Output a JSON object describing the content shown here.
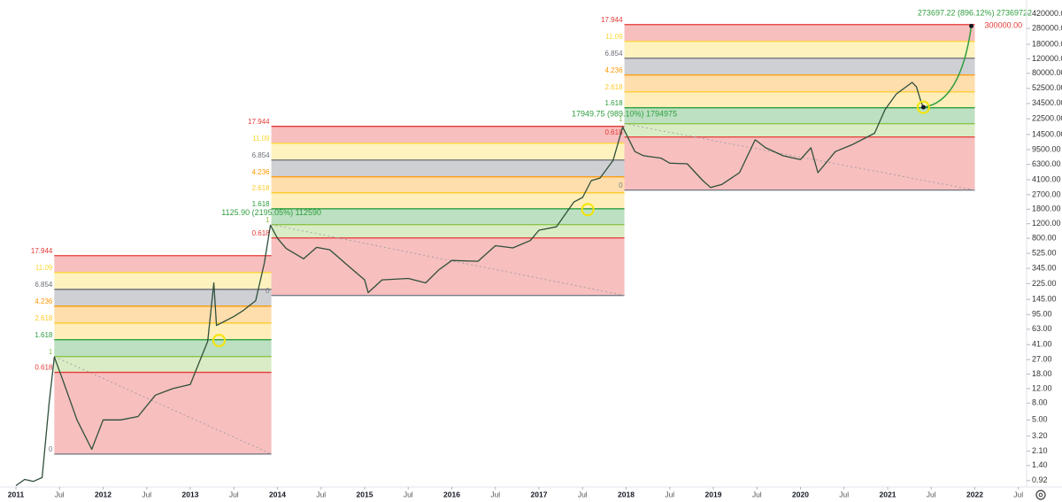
{
  "chart_data": {
    "type": "line",
    "log_scale": true,
    "color": "#2f4f3a",
    "xlim": [
      2010.817,
      2022.594
    ],
    "ylim": [
      0.77,
      620000
    ],
    "grid": false,
    "x": [
      2011.0,
      2011.1,
      2011.2,
      2011.3,
      2011.38,
      2011.44,
      2011.55,
      2011.7,
      2011.87,
      2012.0,
      2012.2,
      2012.4,
      2012.6,
      2012.8,
      2013.0,
      2013.2,
      2013.27,
      2013.3,
      2013.5,
      2013.6,
      2013.75,
      2013.85,
      2013.92,
      2014.0,
      2014.1,
      2014.3,
      2014.45,
      2014.6,
      2014.8,
      2015.0,
      2015.04,
      2015.2,
      2015.5,
      2015.7,
      2015.85,
      2016.0,
      2016.3,
      2016.5,
      2016.7,
      2016.9,
      2017.0,
      2017.2,
      2017.4,
      2017.5,
      2017.6,
      2017.7,
      2017.85,
      2017.96,
      2018.1,
      2018.2,
      2018.4,
      2018.5,
      2018.7,
      2018.88,
      2018.97,
      2019.1,
      2019.3,
      2019.48,
      2019.6,
      2019.8,
      2020.0,
      2020.12,
      2020.2,
      2020.4,
      2020.6,
      2020.85,
      2020.97,
      2021.1,
      2021.28,
      2021.33,
      2021.38,
      2021.41
    ],
    "values": [
      0.8,
      0.95,
      0.9,
      1.0,
      8,
      29,
      14,
      5,
      2.2,
      5,
      5,
      5.5,
      10,
      12,
      13.5,
      45,
      230,
      70,
      90,
      105,
      140,
      400,
      1150,
      800,
      600,
      450,
      620,
      580,
      380,
      250,
      175,
      250,
      260,
      230,
      330,
      430,
      420,
      650,
      610,
      750,
      1000,
      1100,
      2200,
      2500,
      4000,
      4300,
      7000,
      17900,
      9000,
      8000,
      7500,
      6500,
      6400,
      4000,
      3300,
      3600,
      5000,
      12500,
      10000,
      8000,
      7200,
      10000,
      5000,
      9000,
      11000,
      15000,
      29000,
      45000,
      62000,
      55000,
      37000,
      31000
    ],
    "yticks": [
      {
        "value": 420000,
        "label": "420000.00"
      },
      {
        "value": 280000,
        "label": "280000.00"
      },
      {
        "value": 180000,
        "label": "180000.00"
      },
      {
        "value": 120000,
        "label": "120000.00"
      },
      {
        "value": 80000,
        "label": "80000.00"
      },
      {
        "value": 52500,
        "label": "52500.00"
      },
      {
        "value": 34500,
        "label": "34500.00"
      },
      {
        "value": 22500,
        "label": "22500.00"
      },
      {
        "value": 14500,
        "label": "14500.00"
      },
      {
        "value": 9500,
        "label": "9500.00"
      },
      {
        "value": 6300,
        "label": "6300.00"
      },
      {
        "value": 4100,
        "label": "4100.00"
      },
      {
        "value": 2700,
        "label": "2700.00"
      },
      {
        "value": 1800,
        "label": "1800.00"
      },
      {
        "value": 1200,
        "label": "1200.00"
      },
      {
        "value": 800,
        "label": "800.00"
      },
      {
        "value": 525,
        "label": "525.00"
      },
      {
        "value": 345,
        "label": "345.00"
      },
      {
        "value": 225,
        "label": "225.00"
      },
      {
        "value": 145,
        "label": "145.00"
      },
      {
        "value": 95,
        "label": "95.00"
      },
      {
        "value": 63,
        "label": "63.00"
      },
      {
        "value": 41,
        "label": "41.00"
      },
      {
        "value": 27,
        "label": "27.00"
      },
      {
        "value": 18,
        "label": "18.00"
      },
      {
        "value": 12,
        "label": "12.00"
      },
      {
        "value": 8,
        "label": "8.00"
      },
      {
        "value": 5,
        "label": "5.00"
      },
      {
        "value": 3.2,
        "label": "3.20"
      },
      {
        "value": 2.1,
        "label": "2.10"
      },
      {
        "value": 1.4,
        "label": "1.40"
      },
      {
        "value": 0.92,
        "label": "0.92"
      }
    ],
    "xticks": [
      2011,
      {
        "value": 2011.5,
        "label": "Jul"
      },
      2012,
      {
        "value": 2012.5,
        "label": "Jul"
      },
      2013,
      {
        "value": 2013.5,
        "label": "Jul"
      },
      2014,
      {
        "value": 2014.5,
        "label": "Jul"
      },
      2015,
      {
        "value": 2015.5,
        "label": "Jul"
      },
      2016,
      {
        "value": 2016.5,
        "label": "Jul"
      },
      2017,
      {
        "value": 2017.5,
        "label": "Jul"
      },
      2018,
      {
        "value": 2018.5,
        "label": "Jul"
      },
      2019,
      {
        "value": 2019.5,
        "label": "Jul"
      },
      2020,
      {
        "value": 2020.5,
        "label": "Jul"
      },
      2021,
      {
        "value": 2021.5,
        "label": "Jul"
      },
      2022,
      {
        "value": 2022.5,
        "label": "Jul"
      }
    ],
    "fib_levels": [
      {
        "label": "0",
        "color": "#787b86"
      },
      {
        "label": "0.618",
        "color": "#e53935"
      },
      {
        "label": "1",
        "color": "#8bc34a"
      },
      {
        "label": "1.618",
        "color": "#2e9e3e"
      },
      {
        "label": "2.618",
        "color": "#ffca28"
      },
      {
        "label": "4.236",
        "color": "#ff9800"
      },
      {
        "label": "6.854",
        "color": "#6b6e78"
      },
      {
        "label": "11.09",
        "color": "#fdd835"
      },
      {
        "label": "17.944",
        "color": "#e53935"
      }
    ],
    "boxes": [
      {
        "start": 2011.44,
        "end": 2013.93,
        "prices": [
          1.93,
          18.9,
          29.4,
          47,
          75,
          120,
          192,
          307,
          492
        ],
        "measure": "1125.90 (2195.05%) 112590"
      },
      {
        "start": 2013.93,
        "end": 2017.98,
        "prices": [
          162,
          807,
          1170,
          1820,
          2850,
          4440,
          7110,
          11370,
          18200
        ],
        "measure": "17949.75 (989.10%) 1794975"
      },
      {
        "start": 2017.98,
        "end": 2022.0,
        "prices": [
          3070,
          13500,
          19600,
          30600,
          47700,
          76300,
          122000,
          195000,
          312000
        ],
        "measure": "273697.22 (896.12%) 27369722"
      }
    ],
    "highlights": [
      {
        "x": 2013.33,
        "y": 46
      },
      {
        "x": 2017.56,
        "y": 1780
      },
      {
        "x": 2021.41,
        "y": 31000
      }
    ],
    "target": {
      "x": 2021.96,
      "value": 300000,
      "label": "300000.00"
    }
  }
}
